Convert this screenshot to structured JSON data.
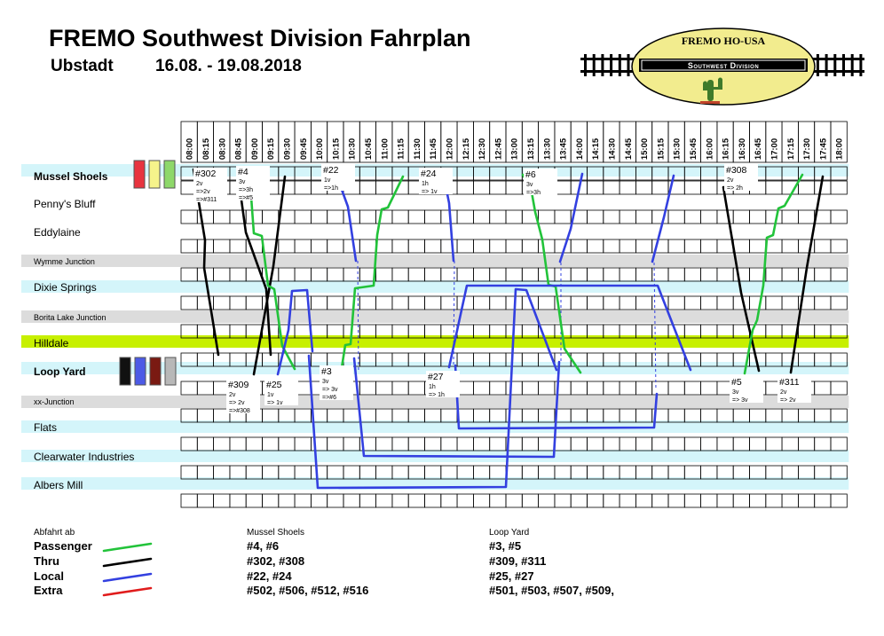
{
  "header": {
    "title": "FREMO Southwest Division Fahrplan",
    "place": "Ubstadt",
    "dates": "16.08. - 19.08.2018"
  },
  "logo": {
    "top_text": "FREMO HO-USA",
    "band_text": "Southwest Division",
    "colors": {
      "oval_fill": "#f2ec8e",
      "band": "#000000",
      "band_text": "#ffffff",
      "cactus": "#3f7a2a"
    }
  },
  "timeline": {
    "times": [
      "08:00",
      "08:15",
      "08:30",
      "08:45",
      "09:00",
      "09:15",
      "09:30",
      "09:45",
      "10:00",
      "10:15",
      "10:30",
      "10:45",
      "11:00",
      "11:15",
      "11:30",
      "11:45",
      "12:00",
      "12:15",
      "12:30",
      "12:45",
      "13:00",
      "13:15",
      "13:30",
      "13:45",
      "14:00",
      "14:15",
      "14:30",
      "14:45",
      "15:00",
      "15:15",
      "15:30",
      "15:45",
      "16:00",
      "16:15",
      "16:30",
      "16:45",
      "17:00",
      "17:15",
      "17:30",
      "17:45",
      "18:00"
    ]
  },
  "stations": [
    {
      "name": "Mussel Shoels",
      "style": "bold",
      "band": "light"
    },
    {
      "name": "Penny's Bluff",
      "style": "normal",
      "band": "none"
    },
    {
      "name": "Eddylaine",
      "style": "normal",
      "band": "none"
    },
    {
      "name": "Wymme Junction",
      "style": "small",
      "band": "grey"
    },
    {
      "name": "Dixie Springs",
      "style": "normal",
      "band": "light"
    },
    {
      "name": "Borita Lake Junction",
      "style": "small",
      "band": "grey"
    },
    {
      "name": "Hilldale",
      "style": "normal",
      "band": "lime"
    },
    {
      "name": "Loop Yard",
      "style": "bold",
      "band": "light"
    },
    {
      "name": "xx-Junction",
      "style": "small",
      "band": "grey"
    },
    {
      "name": "Flats",
      "style": "normal",
      "band": "light"
    },
    {
      "name": "Clearwater Industries",
      "style": "normal",
      "band": "light"
    },
    {
      "name": "Albers Mill",
      "style": "normal",
      "band": "light"
    }
  ],
  "swatches": {
    "mussel_shoels": [
      "#e8343f",
      "#f6f38b",
      "#8ed86a"
    ],
    "loop_yard": [
      "#111111",
      "#4c5ae6",
      "#7a1a12",
      "#b8b8b8"
    ]
  },
  "colors": {
    "passenger": "#22c33a",
    "thru": "#000000",
    "local": "#3340e0",
    "extra": "#e01c1c",
    "band_light": "#d4f5fa",
    "band_grey": "#dcdcdc",
    "band_lime": "#c7f000"
  },
  "trains": [
    {
      "id": "#302",
      "notes": [
        "2v",
        "=>2v",
        "=>#311"
      ]
    },
    {
      "id": "#4",
      "notes": [
        "3v",
        "=>3h",
        "=>#5"
      ]
    },
    {
      "id": "#22",
      "notes": [
        "1v",
        "=>1h"
      ]
    },
    {
      "id": "#24",
      "notes": [
        "1h",
        "=> 1v"
      ]
    },
    {
      "id": "#6",
      "notes": [
        "3v",
        "=>3h"
      ]
    },
    {
      "id": "#308",
      "notes": [
        "2v",
        "=> 2h"
      ]
    },
    {
      "id": "#309",
      "notes": [
        "2v",
        "=> 2v",
        "=>#308"
      ]
    },
    {
      "id": "#25",
      "notes": [
        "1v",
        "=> 1v"
      ]
    },
    {
      "id": "#3",
      "notes": [
        "3v",
        "=> 3v",
        "=>#6"
      ]
    },
    {
      "id": "#27",
      "notes": [
        "1h",
        "=> 1h"
      ]
    },
    {
      "id": "#5",
      "notes": [
        "3v",
        "=> 3v"
      ]
    },
    {
      "id": "#311",
      "notes": [
        "2v",
        "=> 2v"
      ]
    }
  ],
  "legend": {
    "heading": "Abfahrt ab",
    "mussel_heading": "Mussel Shoels",
    "loop_heading": "Loop Yard",
    "rows": [
      {
        "type": "Passenger",
        "mussel": "#4, #6",
        "loop": "#3, #5",
        "color": "#22c33a"
      },
      {
        "type": "Thru",
        "mussel": "#302, #308",
        "loop": "#309, #311",
        "color": "#000000"
      },
      {
        "type": "Local",
        "mussel": "#22, #24",
        "loop": "#25, #27",
        "color": "#3340e0"
      },
      {
        "type": "Extra",
        "mussel": "#502, #506, #512, #516",
        "loop": "#501, #503, #507, #509,",
        "color": "#e01c1c"
      }
    ]
  }
}
